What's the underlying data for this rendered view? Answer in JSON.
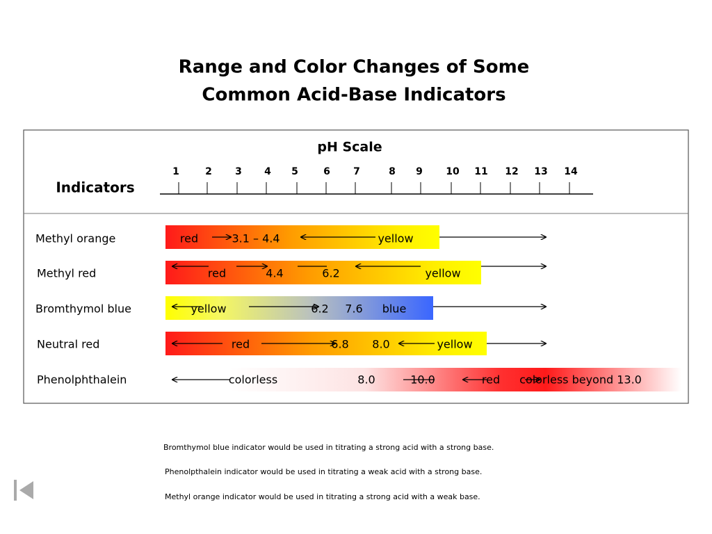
{
  "title": [
    "Range and Color Changes of Some",
    "Common Acid-Base Indicators"
  ],
  "ph_scale_label": "pH Scale",
  "indicators_label": "Indicators",
  "ph_ticks": [
    1,
    2,
    3,
    4,
    5,
    6,
    7,
    8,
    9,
    10,
    11,
    12,
    13,
    14
  ],
  "rows": [
    {
      "name": "Methyl orange",
      "labels": [
        "red",
        "3.1 – 4.4",
        "yellow"
      ]
    },
    {
      "name": "Methyl red",
      "labels": [
        "red",
        "4.4",
        "6.2",
        "yellow"
      ]
    },
    {
      "name": "Bromthymol blue",
      "labels": [
        "yellow",
        "6.2",
        "7.6",
        "blue"
      ]
    },
    {
      "name": "Neutral red",
      "labels": [
        "red",
        "6.8",
        "8.0",
        "yellow"
      ]
    },
    {
      "name": "Phenolphthalein",
      "labels": [
        "colorless",
        "8.0",
        "10.0",
        "red",
        "colorless beyond 13.0"
      ]
    }
  ],
  "notes": [
    "Bromthymol blue indicator would be used in titrating a strong acid with a strong base.",
    "Phenolpthalein indicator would be used in titrating a weak acid with a strong base.",
    "Methyl orange indicator would be used in titrating a strong acid with a weak base."
  ]
}
